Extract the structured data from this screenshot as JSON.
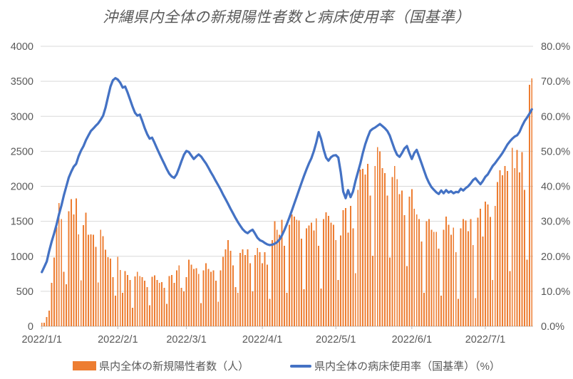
{
  "title": "沖縄県内全体の新規陽性者数と病床使用率（国基準）",
  "colors": {
    "bar": "#ED7D31",
    "line": "#4472C4",
    "text": "#595959",
    "grid": "#D9D9D9",
    "axis_line": "#BFBFBF",
    "background": "#FFFFFF"
  },
  "legend": {
    "items": [
      {
        "label": "県内全体の新規陽性者数（人）",
        "swatch": "bar-swatch",
        "color": "#ED7D31"
      },
      {
        "label": "県内全体の病床使用率（国基準）（%）",
        "swatch": "line-swatch",
        "color": "#4472C4"
      }
    ]
  },
  "chart_data": {
    "type": "bar",
    "subtype": "combo-bar-line-dual-axis",
    "title": "沖縄県内全体の新規陽性者数と病床使用率（国基準）",
    "x_unit": "day",
    "x_start": "2022/1/1",
    "x_end": "2022/7/20",
    "grid": "horizontal",
    "legend_position": "bottom",
    "x_ticks": [
      {
        "label": "2022/1/1",
        "index": 0
      },
      {
        "label": "2022/2/1",
        "index": 31
      },
      {
        "label": "2022/3/1",
        "index": 59
      },
      {
        "label": "2022/4/1",
        "index": 90
      },
      {
        "label": "2022/5/1",
        "index": 120
      },
      {
        "label": "2022/6/1",
        "index": 151
      },
      {
        "label": "2022/7/1",
        "index": 181
      }
    ],
    "y_left": {
      "min": 0,
      "max": 4000,
      "step": 500,
      "tick_labels": [
        "0",
        "500",
        "1000",
        "1500",
        "2000",
        "2500",
        "3000",
        "3500",
        "4000"
      ]
    },
    "y_right": {
      "min": 0,
      "max": 80,
      "step": 10,
      "tick_labels": [
        "0.0%",
        "10.0%",
        "20.0%",
        "30.0%",
        "40.0%",
        "50.0%",
        "60.0%",
        "70.0%",
        "80.0%"
      ]
    },
    "series": [
      {
        "name": "県内全体の新規陽性者数（人）",
        "type": "bar",
        "axis": "left",
        "color": "#ED7D31",
        "values": [
          52,
          51,
          130,
          225,
          623,
          981,
          1414,
          1759,
          1533,
          779,
          600,
          1644,
          1817,
          1596,
          1829,
          1313,
          655,
          1443,
          1622,
          1309,
          1313,
          1308,
          1134,
          625,
          1379,
          1287,
          1096,
          988,
          966,
          700,
          438,
          990,
          805,
          480,
          790,
          735,
          660,
          264,
          710,
          780,
          720,
          700,
          650,
          560,
          300,
          705,
          730,
          660,
          620,
          630,
          550,
          320,
          720,
          735,
          620,
          800,
          870,
          550,
          500,
          700,
          950,
          880,
          820,
          830,
          750,
          330,
          800,
          900,
          820,
          780,
          800,
          650,
          350,
          800,
          990,
          1100,
          1230,
          1080,
          870,
          560,
          480,
          1050,
          1100,
          1020,
          1100,
          900,
          500,
          1020,
          1120,
          1060,
          900,
          1060,
          880,
          390,
          1230,
          1500,
          1380,
          1310,
          1520,
          1150,
          480,
          1450,
          1600,
          1570,
          1520,
          1510,
          1250,
          530,
          1400,
          1440,
          1480,
          1370,
          1540,
          1150,
          540,
          1530,
          1630,
          1580,
          1480,
          1450,
          1230,
          660,
          1300,
          1660,
          1690,
          1340,
          1720,
          1400,
          760,
          1950,
          2240,
          2250,
          2170,
          2320,
          1870,
          1010,
          2290,
          2560,
          2500,
          2260,
          2190,
          1870,
          980,
          2130,
          2290,
          2100,
          1890,
          1940,
          1590,
          860,
          1850,
          1960,
          1680,
          1600,
          1530,
          1210,
          480,
          1500,
          1530,
          1380,
          1350,
          1350,
          1110,
          440,
          1380,
          1570,
          1450,
          1310,
          1410,
          1060,
          390,
          1400,
          1530,
          1510,
          1360,
          1530,
          1160,
          400,
          1550,
          1680,
          1280,
          1780,
          1740,
          1560,
          660,
          1720,
          2060,
          2230,
          2160,
          2290,
          2220,
          790,
          2550,
          2260,
          2520,
          2200,
          2490,
          1950,
          950,
          3450,
          3540
        ]
      },
      {
        "name": "県内全体の病床使用率（国基準）（%）",
        "type": "line",
        "axis": "right",
        "color": "#4472C4",
        "values": [
          15.5,
          17.0,
          18.5,
          21.5,
          24.2,
          26.5,
          29.0,
          32.0,
          34.5,
          37.5,
          40.0,
          42.5,
          44.2,
          45.6,
          46.4,
          48.6,
          50.2,
          51.5,
          53.2,
          54.5,
          55.8,
          56.5,
          57.3,
          58.0,
          59.0,
          60.2,
          62.5,
          65.5,
          68.5,
          70.3,
          70.9,
          70.5,
          69.6,
          68.2,
          68.5,
          66.8,
          64.8,
          62.8,
          61.0,
          60.2,
          60.5,
          58.6,
          56.6,
          54.9,
          53.6,
          53.9,
          52.4,
          50.8,
          49.3,
          47.8,
          46.4,
          44.9,
          43.6,
          42.8,
          42.4,
          43.4,
          45.2,
          47.2,
          49.0,
          50.1,
          49.8,
          48.8,
          47.8,
          48.5,
          49.1,
          48.5,
          47.5,
          46.5,
          45.3,
          44.0,
          42.8,
          41.5,
          40.3,
          39.0,
          37.6,
          36.3,
          35.0,
          33.6,
          32.3,
          31.0,
          29.8,
          28.7,
          27.7,
          27.0,
          26.6,
          27.2,
          27.6,
          26.5,
          25.3,
          24.6,
          24.3,
          23.8,
          23.4,
          23.2,
          23.3,
          23.6,
          24.0,
          24.8,
          26.0,
          27.5,
          29.2,
          31.0,
          33.0,
          35.0,
          37.0,
          39.0,
          41.0,
          43.0,
          44.8,
          46.5,
          48.0,
          50.0,
          52.5,
          55.5,
          53.5,
          50.5,
          48.2,
          47.3,
          48.3,
          48.8,
          48.9,
          48.2,
          44.0,
          38.5,
          36.6,
          38.9,
          36.9,
          38.5,
          41.5,
          44.0,
          46.5,
          49.5,
          52.0,
          54.0,
          55.8,
          56.4,
          56.8,
          57.3,
          57.8,
          57.2,
          56.6,
          55.8,
          54.5,
          52.5,
          50.5,
          49.0,
          48.4,
          49.5,
          50.8,
          51.5,
          49.5,
          47.8,
          49.5,
          50.4,
          48.5,
          46.5,
          44.5,
          42.5,
          41.0,
          39.8,
          39.0,
          38.3,
          37.8,
          38.8,
          38.0,
          38.9,
          38.2,
          38.6,
          38.0,
          38.4,
          38.3,
          39.3,
          38.8,
          39.5,
          40.0,
          40.8,
          41.8,
          42.3,
          41.4,
          40.6,
          41.5,
          42.7,
          43.4,
          44.6,
          45.8,
          46.6,
          47.6,
          48.5,
          49.5,
          50.7,
          51.9,
          52.8,
          53.6,
          54.2,
          54.6,
          55.6,
          57.2,
          58.6,
          59.6,
          60.7,
          62.0
        ]
      }
    ]
  }
}
